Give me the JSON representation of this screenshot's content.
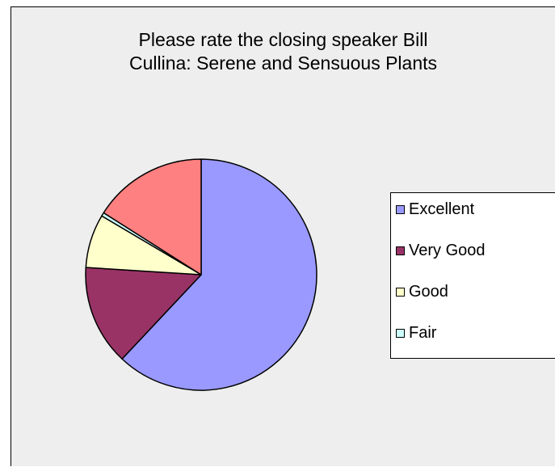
{
  "chart_data": {
    "type": "pie",
    "title_lines": [
      "Please rate the closing speaker Bill",
      "Cullina:  Serene and Sensuous Plants"
    ],
    "categories": [
      "Excellent",
      "Very Good",
      "Good",
      "Fair"
    ],
    "values": [
      62,
      14,
      7.5,
      0.5
    ],
    "slices": [
      {
        "label": "Excellent",
        "value": 62,
        "color": "#9999ff"
      },
      {
        "label": "Very Good",
        "value": 14,
        "color": "#993366"
      },
      {
        "label": "Good",
        "value": 7.5,
        "color": "#ffffcc"
      },
      {
        "label": "Fair",
        "value": 0.5,
        "color": "#ccffff"
      },
      {
        "label": "",
        "value": 16,
        "color": "#ff8080"
      }
    ],
    "legend": [
      "Excellent",
      "Very Good",
      "Good",
      "Fair"
    ],
    "legend_position": "right"
  }
}
